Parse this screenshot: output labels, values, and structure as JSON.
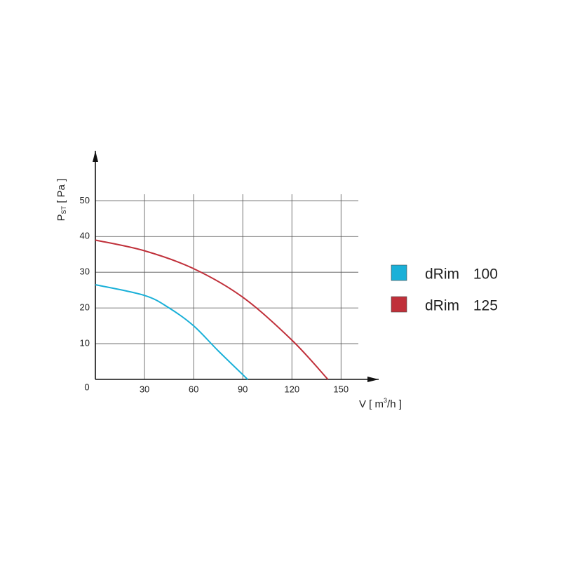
{
  "chart_data": {
    "type": "line",
    "x_label": {
      "main": "V [ m",
      "sup": "3",
      "unit": "/h ]"
    },
    "y_label": {
      "main": "P",
      "sub": "ST",
      "unit": " [ Pa ]"
    },
    "xlim": [
      0,
      173
    ],
    "ylim": [
      0,
      64
    ],
    "xticks": [
      0,
      30,
      60,
      90,
      120,
      150
    ],
    "yticks": [
      10,
      20,
      30,
      40,
      50
    ],
    "grid": true,
    "legend": "right",
    "series": [
      {
        "name": "dRim 100",
        "color": "#1ab0d8",
        "x": [
          0,
          30,
          45,
          60,
          75,
          93
        ],
        "values": [
          26.5,
          23.5,
          20,
          15,
          8,
          0
        ]
      },
      {
        "name": "dRim 125",
        "color": "#c0303a",
        "x": [
          0,
          30,
          60,
          90,
          120,
          142
        ],
        "values": [
          39,
          36,
          31,
          23,
          11,
          0
        ]
      }
    ]
  }
}
